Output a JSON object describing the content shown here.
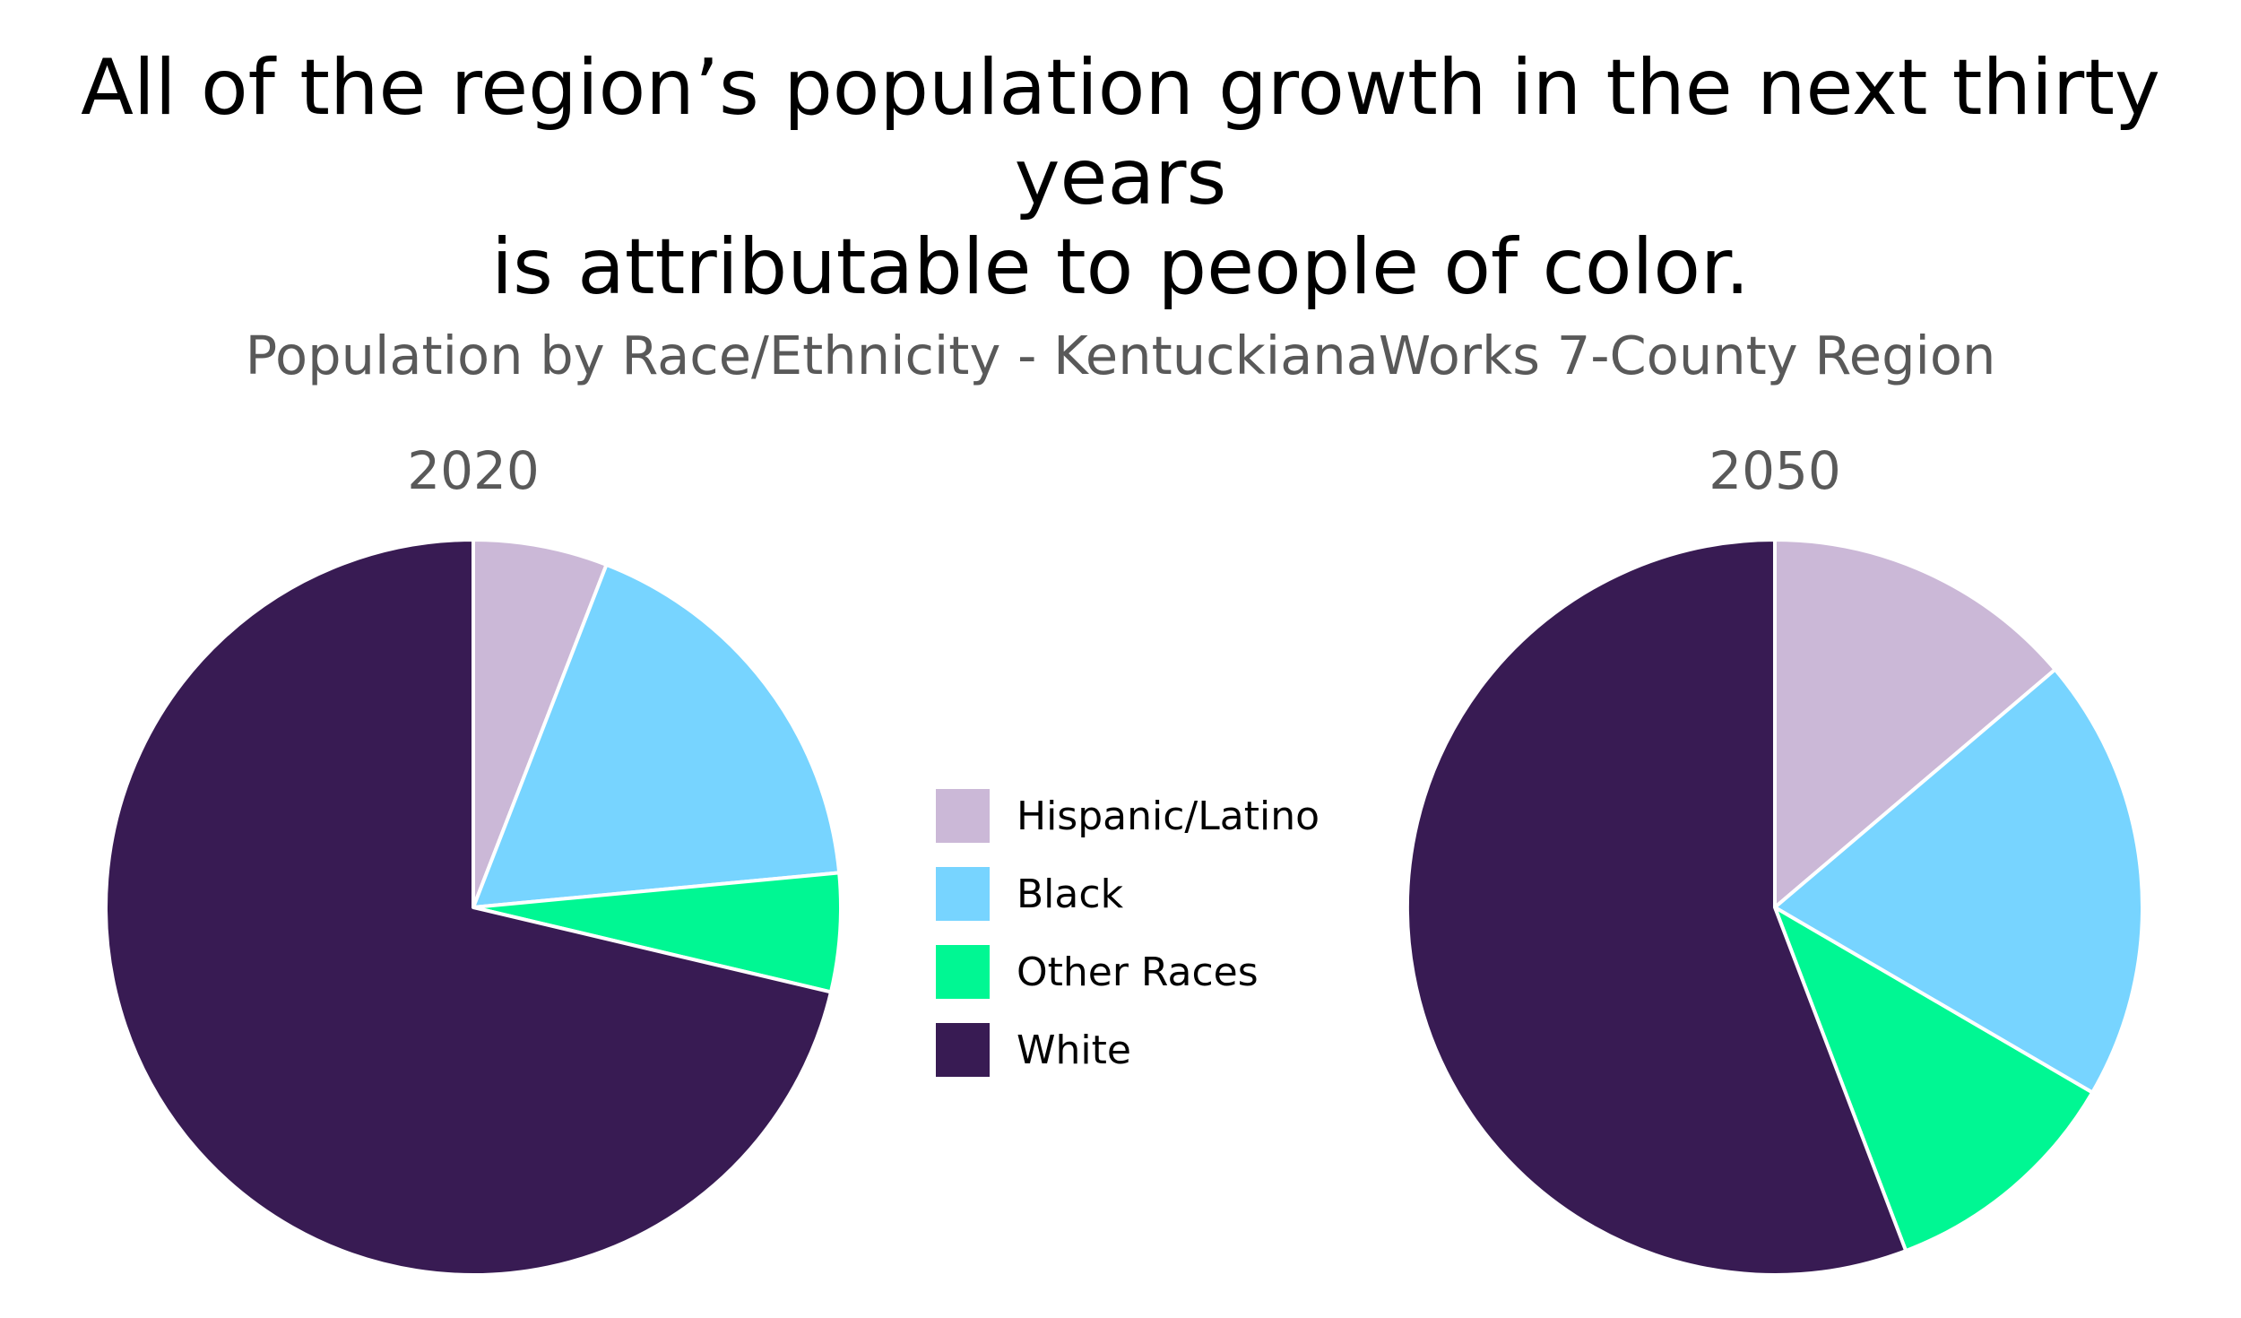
{
  "headline": {
    "line1": "All of the region’s population growth in the next thirty years",
    "line2": "is attributable to people of color."
  },
  "chart_data": {
    "type": "pie",
    "title": "Population by Race/Ethnicity - KentuckianaWorks 7-County Region",
    "categories": [
      "Hispanic/Latino",
      "Black",
      "Other Races",
      "White"
    ],
    "colors": {
      "Hispanic/Latino": "#CBB8D7",
      "Black": "#77D4FF",
      "Other Races": "#00F793",
      "White": "#381B53"
    },
    "legend_position": "center",
    "slice_border_color": "#FFFFFF",
    "pies": [
      {
        "label": "2020",
        "unit": "percent",
        "values": [
          5.9,
          17.6,
          5.2,
          71.3
        ]
      },
      {
        "label": "2050",
        "unit": "percent",
        "values": [
          13.8,
          19.6,
          10.8,
          55.8
        ]
      }
    ]
  }
}
